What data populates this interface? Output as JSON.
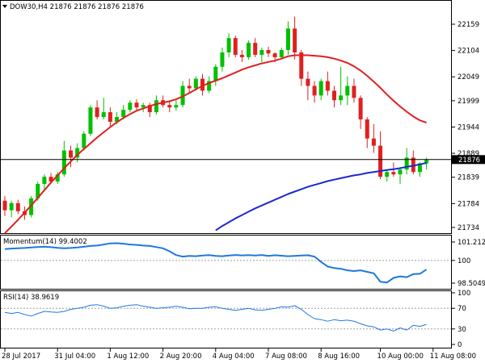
{
  "chart_data": {
    "type": "candlestick",
    "symbol_line": "DOW30,H4  21876 21876 21876 21876",
    "last_price_label": "21876",
    "last_price": 21876,
    "price_ticks": [
      "22159",
      "22104",
      "22049",
      "21999",
      "21944",
      "21889",
      "21839",
      "21784",
      "21734"
    ],
    "price_tick_values": [
      22159,
      22104,
      22049,
      21999,
      21944,
      21889,
      21839,
      21784,
      21734
    ],
    "x_labels": [
      "28 Jul 2017",
      "31 Jul 04:00",
      "1 Aug 12:00",
      "2 Aug 20:00",
      "4 Aug 04:00",
      "7 Aug 08:00",
      "8 Aug 16:00",
      "10 Aug 00:00",
      "11 Aug 08:00"
    ],
    "x_label_bar_index": [
      0,
      8,
      16,
      24,
      32,
      40,
      48,
      57,
      65
    ],
    "colors": {
      "up": "#00c000",
      "down": "#e02020",
      "ma_fast": "#e02020",
      "ma_slow": "#1a2ad0",
      "indicator": "#1e78e0",
      "level": "#a0a0a0"
    },
    "candles": [
      [
        21790,
        21800,
        21758,
        21770
      ],
      [
        21770,
        21790,
        21755,
        21785
      ],
      [
        21785,
        21792,
        21762,
        21768
      ],
      [
        21768,
        21778,
        21750,
        21760
      ],
      [
        21760,
        21800,
        21755,
        21795
      ],
      [
        21795,
        21830,
        21790,
        21825
      ],
      [
        21825,
        21845,
        21810,
        21840
      ],
      [
        21840,
        21848,
        21825,
        21830
      ],
      [
        21830,
        21850,
        21825,
        21845
      ],
      [
        21845,
        21915,
        21840,
        21895
      ],
      [
        21895,
        21905,
        21860,
        21880
      ],
      [
        21880,
        21910,
        21870,
        21900
      ],
      [
        21900,
        21935,
        21895,
        21930
      ],
      [
        21930,
        21990,
        21925,
        21985
      ],
      [
        21985,
        22000,
        21960,
        21965
      ],
      [
        21965,
        22005,
        21960,
        21975
      ],
      [
        21975,
        21985,
        21945,
        21955
      ],
      [
        21955,
        21975,
        21950,
        21965
      ],
      [
        21965,
        21990,
        21960,
        21980
      ],
      [
        21980,
        22000,
        21975,
        21995
      ],
      [
        21995,
        22002,
        21978,
        21985
      ],
      [
        21985,
        21995,
        21975,
        21990
      ],
      [
        21990,
        21995,
        21965,
        21975
      ],
      [
        21975,
        22010,
        21970,
        22000
      ],
      [
        22000,
        22010,
        21985,
        21990
      ],
      [
        21990,
        22000,
        21975,
        21985
      ],
      [
        21985,
        22000,
        21978,
        21990
      ],
      [
        21990,
        22040,
        21985,
        22030
      ],
      [
        22030,
        22045,
        22015,
        22025
      ],
      [
        22025,
        22050,
        22020,
        22045
      ],
      [
        22045,
        22055,
        22010,
        22020
      ],
      [
        22020,
        22050,
        22015,
        22040
      ],
      [
        22040,
        22075,
        22030,
        22070
      ],
      [
        22070,
        22110,
        22060,
        22100
      ],
      [
        22100,
        22140,
        22090,
        22130
      ],
      [
        22130,
        22135,
        22090,
        22095
      ],
      [
        22095,
        22105,
        22080,
        22090
      ],
      [
        22090,
        22125,
        22085,
        22120
      ],
      [
        22120,
        22130,
        22090,
        22095
      ],
      [
        22095,
        22110,
        22080,
        22105
      ],
      [
        22105,
        22112,
        22090,
        22098
      ],
      [
        22098,
        22100,
        22080,
        22090
      ],
      [
        22090,
        22110,
        22085,
        22105
      ],
      [
        22105,
        22165,
        22095,
        22150
      ],
      [
        22150,
        22175,
        22085,
        22100
      ],
      [
        22100,
        22105,
        22030,
        22045
      ],
      [
        22045,
        22060,
        22000,
        22030
      ],
      [
        22030,
        22040,
        21995,
        22010
      ],
      [
        22010,
        22045,
        22000,
        22040
      ],
      [
        22040,
        22060,
        22010,
        22020
      ],
      [
        22020,
        22030,
        21985,
        22000
      ],
      [
        22000,
        22070,
        21990,
        22010
      ],
      [
        22010,
        22050,
        21990,
        22030
      ],
      [
        22030,
        22045,
        21995,
        22005
      ],
      [
        22005,
        22010,
        21940,
        21960
      ],
      [
        21960,
        21965,
        21900,
        21920
      ],
      [
        21920,
        21950,
        21890,
        21905
      ],
      [
        21905,
        21935,
        21835,
        21840
      ],
      [
        21840,
        21855,
        21830,
        21850
      ],
      [
        21850,
        21870,
        21840,
        21845
      ],
      [
        21845,
        21860,
        21825,
        21855
      ],
      [
        21855,
        21900,
        21845,
        21880
      ],
      [
        21880,
        21895,
        21845,
        21850
      ],
      [
        21850,
        21870,
        21840,
        21868
      ],
      [
        21868,
        21880,
        21855,
        21876
      ]
    ],
    "ma_fast": [
      21722,
      21736,
      21750,
      21765,
      21780,
      21796,
      21812,
      21828,
      21843,
      21858,
      21872,
      21886,
      21898,
      21910,
      21922,
      21933,
      21944,
      21954,
      21963,
      21971,
      21978,
      21983,
      21988,
      21992,
      21995,
      21998,
      22002,
      22008,
      22015,
      22023,
      22030,
      22036,
      22041,
      22046,
      22052,
      22058,
      22064,
      22069,
      22073,
      22077,
      22080,
      22083,
      22087,
      22092,
      22094,
      22094,
      22094,
      22093,
      22092,
      22090,
      22087,
      22083,
      22078,
      22071,
      22062,
      22051,
      22039,
      22026,
      22012,
      21999,
      21987,
      21976,
      21966,
      21958,
      21953
    ],
    "ma_slow": [
      null,
      null,
      null,
      null,
      null,
      null,
      null,
      null,
      null,
      null,
      null,
      null,
      null,
      null,
      null,
      null,
      null,
      null,
      null,
      null,
      null,
      null,
      null,
      null,
      null,
      null,
      null,
      null,
      null,
      null,
      null,
      null,
      21728,
      21737,
      21745,
      21753,
      21760,
      21767,
      21774,
      21780,
      21786,
      21792,
      21798,
      21804,
      21809,
      21814,
      21819,
      21823,
      21827,
      21831,
      21834,
      21837,
      21840,
      21843,
      21845,
      21848,
      21850,
      21852,
      21854,
      21856,
      21858,
      21861,
      21863,
      21866,
      21869
    ],
    "momentum": {
      "label": "Momentum(14) 99.4002",
      "ticks": [
        "101.2121",
        "100",
        "98.5049"
      ],
      "tick_values": [
        101.2121,
        100,
        98.5049
      ],
      "level": 100,
      "values": [
        100.75,
        100.78,
        100.8,
        100.82,
        100.85,
        100.88,
        100.9,
        100.87,
        100.83,
        100.8,
        100.82,
        100.85,
        100.9,
        100.95,
        100.98,
        101.05,
        101.12,
        101.13,
        101.1,
        101.05,
        101.02,
        100.98,
        100.95,
        100.88,
        100.8,
        100.6,
        100.35,
        100.25,
        100.3,
        100.28,
        100.32,
        100.35,
        100.3,
        100.28,
        100.32,
        100.36,
        100.33,
        100.35,
        100.32,
        100.36,
        100.3,
        100.34,
        100.31,
        100.28,
        100.3,
        100.32,
        100.34,
        100.25,
        99.9,
        99.6,
        99.5,
        99.45,
        99.35,
        99.3,
        99.35,
        99.25,
        99.15,
        98.6,
        98.55,
        98.85,
        98.95,
        98.9,
        99.1,
        99.12,
        99.4
      ]
    },
    "rsi": {
      "label": "RSI(14) 38.9619",
      "ticks": [
        "100",
        "70",
        "30",
        "0"
      ],
      "tick_values": [
        100,
        70,
        30,
        0
      ],
      "levels": [
        70,
        30
      ],
      "values": [
        62,
        60,
        62,
        58,
        55,
        60,
        64,
        63,
        62,
        64,
        68,
        70,
        72,
        76,
        77,
        74,
        70,
        71,
        74,
        76,
        77,
        74,
        72,
        70,
        71,
        72,
        74,
        72,
        69,
        70,
        70,
        72,
        73,
        70,
        68,
        66,
        68,
        70,
        67,
        66,
        68,
        70,
        73,
        72,
        75,
        68,
        58,
        50,
        48,
        45,
        48,
        46,
        47,
        45,
        40,
        36,
        34,
        28,
        30,
        26,
        32,
        28,
        37,
        35,
        38.96
      ]
    }
  }
}
